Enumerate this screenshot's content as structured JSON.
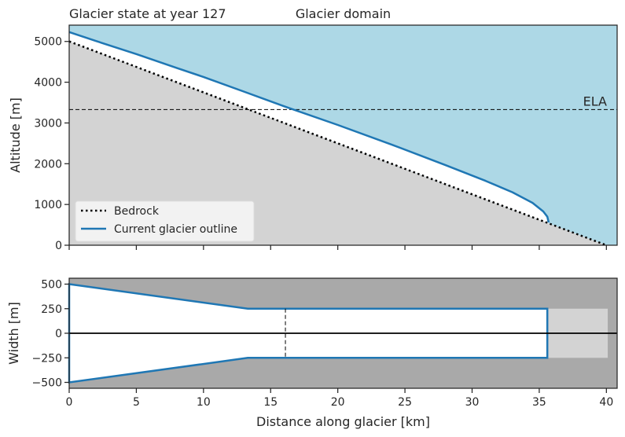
{
  "chart_data": [
    {
      "type": "area",
      "title_left": "Glacier state at year 127",
      "title_center": "Glacier domain",
      "xlabel": "",
      "ylabel": "Altitude [m]",
      "xlim": [
        0,
        40.8
      ],
      "ylim": [
        0,
        5400
      ],
      "xticks": [
        0,
        5,
        10,
        15,
        20,
        25,
        30,
        35,
        40
      ],
      "yticks": [
        0,
        1000,
        2000,
        3000,
        4000,
        5000
      ],
      "ytick_labels": [
        "0",
        "1000",
        "2000",
        "3000",
        "4000",
        "5000"
      ],
      "grid": false,
      "legend_placement": "lower-left",
      "ela": {
        "label": "ELA",
        "value": 3330
      },
      "series": [
        {
          "name": "Bedrock",
          "style": "dotted",
          "x": [
            0,
            40
          ],
          "y": [
            5000,
            0
          ]
        },
        {
          "name": "Current glacier outline",
          "style": "solid",
          "x": [
            0,
            2,
            5,
            8,
            10,
            13,
            16,
            20,
            24,
            28,
            31,
            33,
            34.5,
            35.3,
            35.6,
            35.7
          ],
          "y": [
            5230,
            5010,
            4690,
            4350,
            4130,
            3770,
            3410,
            2950,
            2470,
            1970,
            1580,
            1300,
            1040,
            830,
            700,
            560
          ]
        }
      ],
      "colors": {
        "sky": "#add8e6",
        "ground": "#d3d3d3",
        "outline": "#1f77b4",
        "bedrock": "#000000"
      }
    },
    {
      "type": "area",
      "title": "",
      "xlabel": "Distance along glacier [km]",
      "ylabel": "Width [m]",
      "xlim": [
        0,
        40.8
      ],
      "ylim": [
        -560,
        560
      ],
      "xticks": [
        0,
        5,
        10,
        15,
        20,
        25,
        30,
        35,
        40
      ],
      "yticks": [
        500,
        250,
        0,
        -250,
        -500
      ],
      "ytick_labels": [
        "500",
        "250",
        "0",
        "−250",
        "−500"
      ],
      "grid": false,
      "ela_x": 16.1,
      "outline_x": [
        0,
        13.3,
        35.6
      ],
      "half_width": [
        500,
        250,
        250
      ],
      "terminus_x": 35.6,
      "domain_end_x": 40.1,
      "domain_half_width": 250,
      "colors": {
        "background": "#a9a9a9",
        "domain": "#d3d3d3",
        "ice": "#ffffff",
        "outline": "#1f77b4"
      }
    }
  ]
}
